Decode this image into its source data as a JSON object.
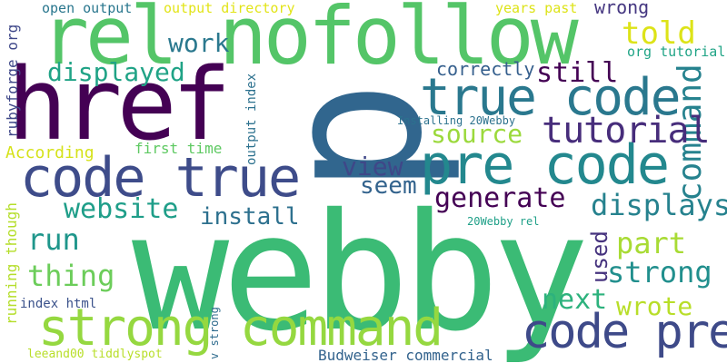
{
  "words": [
    {
      "id": "webby",
      "text": "webby",
      "color": "#3bbb75"
    },
    {
      "id": "p",
      "text": "p",
      "color": "#31668e"
    },
    {
      "id": "rel-nofollow",
      "text": "rel nofollow",
      "color": "#54c568"
    },
    {
      "id": "href",
      "text": "href",
      "color": "#440154"
    },
    {
      "id": "strong-command",
      "text": "strong command",
      "color": "#95d840"
    },
    {
      "id": "code-true",
      "text": "code true",
      "color": "#3e4c8a"
    },
    {
      "id": "pre-code",
      "text": "pre code",
      "color": "#23888e"
    },
    {
      "id": "true-code",
      "text": "true code",
      "color": "#2a788e"
    },
    {
      "id": "code-pre",
      "text": "code pre",
      "color": "#3e4a89"
    },
    {
      "id": "command",
      "text": "command",
      "color": "#26828e"
    },
    {
      "id": "tutorial",
      "text": "tutorial",
      "color": "#472d7b"
    },
    {
      "id": "generate",
      "text": "generate",
      "color": "#440154"
    },
    {
      "id": "website",
      "text": "website",
      "color": "#1f9e89"
    },
    {
      "id": "install",
      "text": "install",
      "color": "#2d708e"
    },
    {
      "id": "displays",
      "text": "displays",
      "color": "#26828e"
    },
    {
      "id": "strong",
      "text": "strong",
      "color": "#218f8d"
    },
    {
      "id": "told",
      "text": "told",
      "color": "#dde318"
    },
    {
      "id": "displayed",
      "text": "displayed",
      "color": "#20a386"
    },
    {
      "id": "work",
      "text": "work",
      "color": "#2a788e"
    },
    {
      "id": "source",
      "text": "source",
      "color": "#9bd93c"
    },
    {
      "id": "still",
      "text": "still",
      "color": "#440154"
    },
    {
      "id": "view",
      "text": "view",
      "color": "#3f4788"
    },
    {
      "id": "seem",
      "text": "seem",
      "color": "#33638d"
    },
    {
      "id": "run",
      "text": "run",
      "color": "#1f968b"
    },
    {
      "id": "thing",
      "text": "thing",
      "color": "#6ccd5a"
    },
    {
      "id": "part",
      "text": "part",
      "color": "#a8db34"
    },
    {
      "id": "next",
      "text": "next",
      "color": "#2db27d"
    },
    {
      "id": "wrote",
      "text": "wrote",
      "color": "#b8de29"
    },
    {
      "id": "used",
      "text": "used",
      "color": "#46337e"
    },
    {
      "id": "wrong",
      "text": "wrong",
      "color": "#453781"
    },
    {
      "id": "correctly",
      "text": "correctly",
      "color": "#355f8d"
    },
    {
      "id": "according",
      "text": "According",
      "color": "#d5e21a"
    },
    {
      "id": "first-time",
      "text": "first time",
      "color": "#5ec962"
    },
    {
      "id": "open-output",
      "text": "open output",
      "color": "#2a778e"
    },
    {
      "id": "output-directory",
      "text": "output directory",
      "color": "#e2e418"
    },
    {
      "id": "years-past",
      "text": "years past",
      "color": "#dde318"
    },
    {
      "id": "org-tutorial",
      "text": "org tutorial",
      "color": "#20a486"
    },
    {
      "id": "rubyforge-org",
      "text": "rubyforge org",
      "color": "#3f4889"
    },
    {
      "id": "output-index",
      "text": "output index",
      "color": "#2c718e"
    },
    {
      "id": "installing-20webby",
      "text": "Installing 20Webby",
      "color": "#2c728e"
    },
    {
      "id": "20webby-rel",
      "text": "20Webby rel",
      "color": "#1fa088"
    },
    {
      "id": "running-though",
      "text": "running though",
      "color": "#b5de2b"
    },
    {
      "id": "index-html",
      "text": "index html",
      "color": "#3b528b"
    },
    {
      "id": "v-strong",
      "text": "v strong",
      "color": "#2f6c8e"
    },
    {
      "id": "leeand00-tiddlyspot",
      "text": "leeand00 tiddlyspot",
      "color": "#b8de29"
    },
    {
      "id": "budweiser-commercial",
      "text": "Budweiser commercial",
      "color": "#33638d"
    }
  ]
}
